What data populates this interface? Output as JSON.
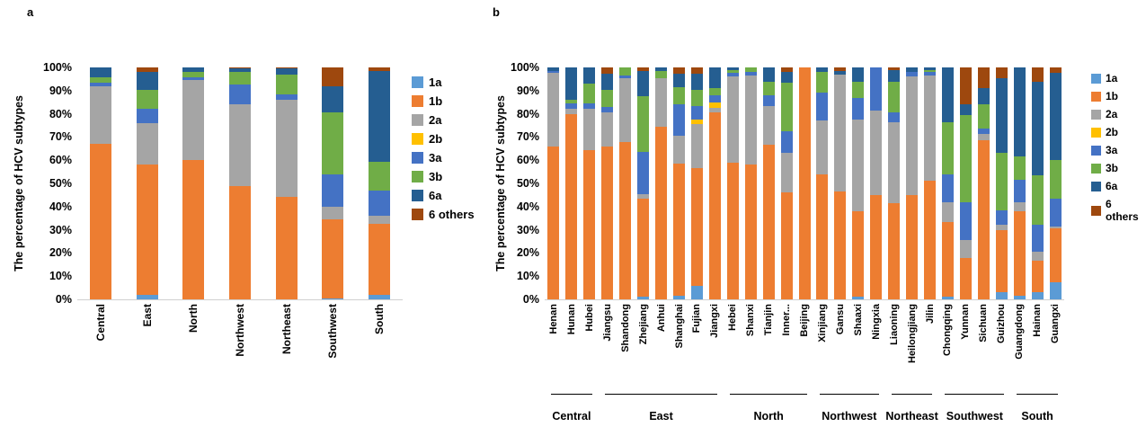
{
  "figure": {
    "panel_a_label": "a",
    "panel_b_label": "b"
  },
  "chart_data": [
    {
      "id": "a",
      "type": "bar",
      "stacked": true,
      "title": "",
      "xlabel": "",
      "ylabel": "The percentage of HCV subtypes",
      "ylim": [
        0,
        100
      ],
      "grid": false,
      "legend_position": "right",
      "yticks": [
        "0%",
        "10%",
        "20%",
        "30%",
        "40%",
        "50%",
        "60%",
        "70%",
        "80%",
        "90%",
        "100%"
      ],
      "categories": [
        "Central",
        "East",
        "North",
        "Northwest",
        "Northeast",
        "Southwest",
        "South"
      ],
      "series": [
        {
          "name": "1a",
          "color": "#5B9BD5",
          "values": [
            0,
            2,
            0,
            0,
            0,
            0.5,
            2
          ]
        },
        {
          "name": "1b",
          "color": "#ED7D31",
          "values": [
            67,
            56,
            60,
            49,
            44,
            34,
            30.5
          ]
        },
        {
          "name": "2a",
          "color": "#A5A5A5",
          "values": [
            25,
            18,
            34.5,
            35,
            42,
            5.5,
            3.5
          ]
        },
        {
          "name": "2b",
          "color": "#FFC000",
          "values": [
            0,
            0,
            0,
            0,
            0,
            0,
            0
          ]
        },
        {
          "name": "3a",
          "color": "#4472C4",
          "values": [
            1.5,
            6,
            1.2,
            8.5,
            2.5,
            14,
            11
          ]
        },
        {
          "name": "3b",
          "color": "#70AD47",
          "values": [
            2.3,
            8.5,
            2.3,
            5.5,
            8.5,
            26.5,
            12.5
          ]
        },
        {
          "name": "6a",
          "color": "#255E91",
          "values": [
            4.2,
            7.5,
            2,
            1.5,
            2.5,
            11.5,
            39
          ]
        },
        {
          "name": "6 others",
          "color": "#9E480E",
          "values": [
            0,
            2,
            0,
            0.5,
            0.5,
            8,
            1.5
          ]
        }
      ]
    },
    {
      "id": "b",
      "type": "bar",
      "stacked": true,
      "title": "",
      "xlabel": "",
      "ylabel": "The percentage of HCV subtypes",
      "ylim": [
        0,
        100
      ],
      "grid": false,
      "legend_position": "right",
      "yticks": [
        "0%",
        "10%",
        "20%",
        "30%",
        "40%",
        "50%",
        "60%",
        "70%",
        "80%",
        "90%",
        "100%"
      ],
      "categories": [
        "Henan",
        "Hunan",
        "Hubei",
        "Jiangsu",
        "Shandong",
        "Zhejiang",
        "Anhui",
        "Shanghai",
        "Fujian",
        "Jiangxi",
        "Hebei",
        "Shanxi",
        "Tianjin",
        "Inner...",
        "Beijing",
        "Xinjiang",
        "Gansu",
        "Shaaxi",
        "Ningxia",
        "Liaoning",
        "Heilongjiang",
        "Jilin",
        "Chongqing",
        "Yunnan",
        "Sichuan",
        "Guizhou",
        "Guangdong",
        "Hainan",
        "Guangxi"
      ],
      "groups": [
        {
          "label": "Central",
          "count": 3
        },
        {
          "label": "East",
          "count": 7
        },
        {
          "label": "North",
          "count": 5
        },
        {
          "label": "Northwest",
          "count": 4
        },
        {
          "label": "Northeast",
          "count": 3
        },
        {
          "label": "Southwest",
          "count": 4
        },
        {
          "label": "South",
          "count": 3
        }
      ],
      "series": [
        {
          "name": "1a",
          "color": "#5B9BD5",
          "values": [
            0,
            0,
            0,
            0,
            0,
            1,
            0,
            1.5,
            6,
            0,
            0,
            0,
            0,
            0,
            0,
            0,
            0,
            1,
            0,
            0,
            0,
            0,
            1,
            0,
            0,
            3,
            1.5,
            3,
            7.5
          ]
        },
        {
          "name": "1b",
          "color": "#ED7D31",
          "values": [
            66,
            80,
            64.5,
            66,
            68,
            42.5,
            74.5,
            57,
            50.5,
            80.5,
            59,
            58,
            66.5,
            46,
            100,
            54,
            46.5,
            37,
            45,
            41.5,
            45,
            51,
            32.5,
            18,
            68.5,
            27,
            36.5,
            13.5,
            23
          ]
        },
        {
          "name": "2a",
          "color": "#A5A5A5",
          "values": [
            31.5,
            2,
            17.5,
            14.5,
            27.5,
            2,
            21,
            12,
            19,
            2,
            37,
            38.5,
            17,
            17,
            0,
            23,
            50.5,
            39.5,
            36.5,
            35,
            51,
            45.5,
            8.5,
            7.5,
            3,
            2,
            4,
            4,
            1
          ]
        },
        {
          "name": "2b",
          "color": "#FFC000",
          "values": [
            0,
            0,
            0,
            0,
            0,
            0,
            0,
            0,
            2,
            2.5,
            0,
            0,
            0,
            0,
            0,
            0,
            0,
            0,
            0,
            0,
            0,
            0,
            0,
            0,
            0,
            0,
            0,
            0,
            0
          ]
        },
        {
          "name": "3a",
          "color": "#4472C4",
          "values": [
            1,
            2.5,
            2.5,
            2.5,
            1,
            18,
            0,
            13.5,
            6,
            3,
            1.5,
            1.5,
            4.5,
            9.5,
            0,
            12,
            0,
            9.5,
            18.5,
            4,
            2,
            1.5,
            12,
            16.5,
            2,
            6.5,
            9.5,
            11.5,
            12
          ]
        },
        {
          "name": "3b",
          "color": "#70AD47",
          "values": [
            0,
            1.5,
            8.5,
            7.5,
            3.5,
            24,
            3,
            7.5,
            7,
            3,
            1.5,
            2,
            6,
            21,
            0,
            9,
            0,
            7,
            0,
            13.5,
            0,
            1,
            22.5,
            37.5,
            10.5,
            24.5,
            10,
            21.5,
            16.5
          ]
        },
        {
          "name": "6a",
          "color": "#255E91",
          "values": [
            1.5,
            14,
            7,
            7,
            0,
            11,
            1.5,
            6,
            7,
            9,
            1,
            0,
            6,
            4.5,
            0,
            2,
            1.5,
            6,
            0,
            5,
            2,
            1,
            23.5,
            4.5,
            7,
            32.5,
            38.5,
            40.5,
            37.5
          ]
        },
        {
          "name": "6 others",
          "color": "#9E480E",
          "values": [
            0,
            0,
            0,
            2.5,
            0,
            1.5,
            0,
            2.5,
            2.5,
            0,
            0,
            0,
            0,
            2,
            0,
            0,
            1.5,
            0,
            0,
            1,
            0,
            0,
            0,
            16,
            9,
            4.5,
            0,
            6,
            2.5
          ]
        }
      ]
    }
  ]
}
